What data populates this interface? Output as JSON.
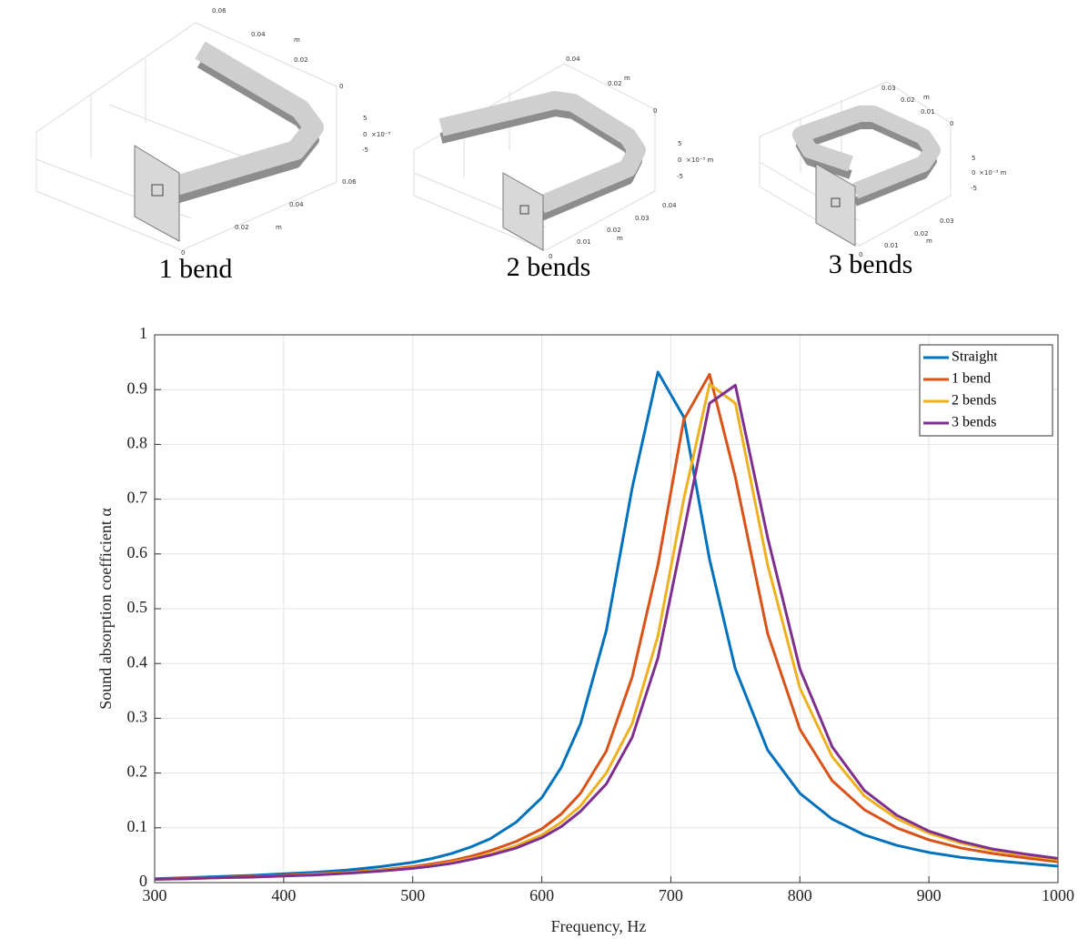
{
  "figures": [
    {
      "caption": "1 bend",
      "labels": [
        "0.06",
        "0.04",
        "m",
        "0.02",
        "0",
        "5",
        "0",
        "×10⁻³",
        "-5",
        "0.06",
        "0.04",
        "m",
        "0.02",
        "0"
      ]
    },
    {
      "caption": "2 bends",
      "labels": [
        "0.04",
        "m",
        "0.02",
        "0",
        "5",
        "0",
        "×10⁻³ m",
        "-5",
        "0.04",
        "0.03",
        "0.02",
        "m",
        "0.01",
        "0"
      ]
    },
    {
      "caption": "3 bends",
      "labels": [
        "0.03",
        "0.02",
        "m",
        "0.01",
        "0",
        "5",
        "0",
        "×10⁻³ m",
        "-5",
        "0.03",
        "0.02",
        "m",
        "0.01",
        "0"
      ]
    }
  ],
  "chart_data": {
    "type": "line",
    "xlabel": "Frequency, Hz",
    "ylabel": "Sound absorption coefficient α",
    "x": [
      300,
      325,
      350,
      375,
      400,
      425,
      450,
      475,
      500,
      515,
      530,
      545,
      560,
      580,
      600,
      615,
      630,
      650,
      670,
      690,
      710,
      730,
      750,
      775,
      800,
      825,
      850,
      875,
      900,
      925,
      950,
      975,
      1000
    ],
    "series": [
      {
        "name": "Straight",
        "color": "#0072bd",
        "values": [
          0.007,
          0.009,
          0.011,
          0.013,
          0.016,
          0.019,
          0.023,
          0.029,
          0.037,
          0.044,
          0.053,
          0.065,
          0.08,
          0.11,
          0.155,
          0.21,
          0.29,
          0.46,
          0.72,
          0.932,
          0.85,
          0.59,
          0.39,
          0.242,
          0.163,
          0.116,
          0.087,
          0.068,
          0.055,
          0.046,
          0.04,
          0.035,
          0.03
        ]
      },
      {
        "name": "1 bend",
        "color": "#d95319",
        "values": [
          0.006,
          0.008,
          0.009,
          0.011,
          0.013,
          0.016,
          0.019,
          0.023,
          0.029,
          0.034,
          0.04,
          0.048,
          0.058,
          0.075,
          0.098,
          0.125,
          0.163,
          0.24,
          0.375,
          0.58,
          0.845,
          0.928,
          0.74,
          0.455,
          0.28,
          0.186,
          0.133,
          0.1,
          0.078,
          0.063,
          0.053,
          0.045,
          0.038
        ]
      },
      {
        "name": "2 bends",
        "color": "#edb120",
        "values": [
          0.006,
          0.007,
          0.009,
          0.01,
          0.012,
          0.015,
          0.018,
          0.022,
          0.027,
          0.031,
          0.037,
          0.044,
          0.052,
          0.067,
          0.087,
          0.11,
          0.14,
          0.2,
          0.29,
          0.45,
          0.7,
          0.91,
          0.875,
          0.58,
          0.355,
          0.23,
          0.158,
          0.117,
          0.09,
          0.072,
          0.059,
          0.05,
          0.042
        ]
      },
      {
        "name": "3 bends",
        "color": "#7e2f8e",
        "values": [
          0.006,
          0.007,
          0.009,
          0.01,
          0.012,
          0.014,
          0.017,
          0.021,
          0.026,
          0.03,
          0.035,
          0.042,
          0.05,
          0.063,
          0.082,
          0.102,
          0.13,
          0.18,
          0.265,
          0.41,
          0.64,
          0.875,
          0.908,
          0.63,
          0.39,
          0.248,
          0.168,
          0.123,
          0.094,
          0.075,
          0.061,
          0.052,
          0.044
        ]
      }
    ],
    "xlim": [
      300,
      1000
    ],
    "xticks": [
      300,
      400,
      500,
      600,
      700,
      800,
      900,
      1000
    ],
    "ylim": [
      0,
      1
    ],
    "yticks": [
      0,
      0.1,
      0.2,
      0.3,
      0.4,
      0.5,
      0.6,
      0.7,
      0.8,
      0.9,
      1
    ],
    "grid": true,
    "legend": "upper right"
  }
}
